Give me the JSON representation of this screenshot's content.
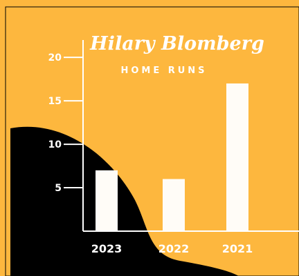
{
  "colors": {
    "background": "#FDB73E",
    "wave": "#000000",
    "bars": "#FFFCF7",
    "text": "#FFFFFF"
  },
  "chart_data": {
    "type": "bar",
    "title": "Hilary Blomberg",
    "subtitle": "HOME RUNS",
    "categories": [
      "2023",
      "2022",
      "2021"
    ],
    "values": [
      7,
      6,
      17
    ],
    "ylim": [
      0,
      22
    ],
    "yticks": [
      5,
      10,
      15,
      20
    ],
    "ytick_labels": [
      "5",
      "10",
      "15",
      "20"
    ],
    "grid": false,
    "legend": "none"
  }
}
